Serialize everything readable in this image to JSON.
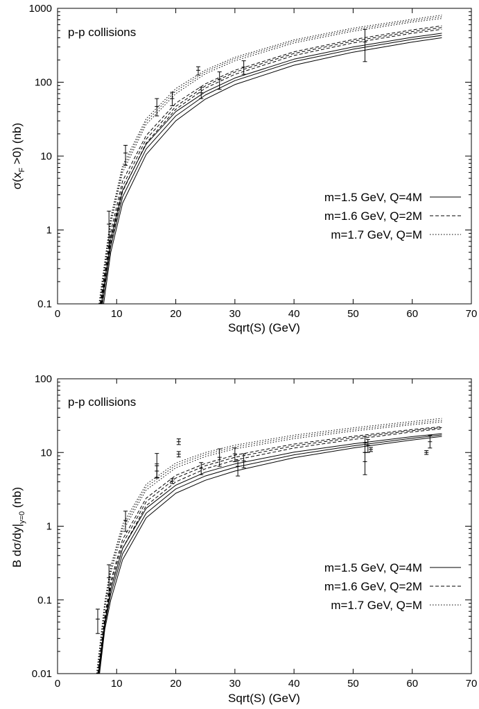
{
  "chart_data": [
    {
      "type": "line",
      "annotation": "p-p collisions",
      "xlabel": "Sqrt(S) (GeV)",
      "ylabel_main": "σ(x",
      "ylabel_sub": "F",
      "ylabel_tail": " >0) (nb)",
      "xlim": [
        0,
        70
      ],
      "ylim": [
        0.1,
        1000
      ],
      "yscale": "log",
      "x_ticks": [
        "0",
        "10",
        "20",
        "30",
        "40",
        "50",
        "60",
        "70"
      ],
      "y_ticks": [
        "0.1",
        "1",
        "10",
        "100",
        "1000"
      ],
      "legend_position": "right-middle",
      "legend": [
        {
          "label": "m=1.5 GeV, Q=4M",
          "style": "solid"
        },
        {
          "label": "m=1.6 GeV, Q=2M",
          "style": "dashed"
        },
        {
          "label": "m=1.7 GeV, Q=M",
          "style": "dotted"
        }
      ],
      "series": [
        {
          "style": "solid",
          "x": [
            7.8,
            9,
            11,
            15,
            20,
            25,
            30,
            40,
            50,
            60,
            65
          ],
          "y": [
            0.1,
            0.5,
            2.3,
            10.5,
            30,
            59,
            93,
            170,
            255,
            350,
            400
          ]
        },
        {
          "style": "solid",
          "x": [
            7.6,
            9,
            11,
            15,
            20,
            25,
            30,
            40,
            50,
            60,
            65
          ],
          "y": [
            0.1,
            0.6,
            2.8,
            12.5,
            35,
            67,
            105,
            190,
            280,
            380,
            430
          ]
        },
        {
          "style": "solid",
          "x": [
            7.4,
            9,
            11,
            15,
            20,
            25,
            30,
            40,
            50,
            60,
            65
          ],
          "y": [
            0.1,
            0.75,
            3.4,
            14.5,
            40,
            74,
            114,
            205,
            300,
            405,
            460
          ]
        },
        {
          "style": "dashed",
          "x": [
            7.5,
            9,
            11,
            15,
            20,
            25,
            30,
            40,
            50,
            60,
            65
          ],
          "y": [
            0.1,
            0.65,
            3.3,
            15,
            43,
            83,
            128,
            230,
            340,
            460,
            520
          ]
        },
        {
          "style": "dashed",
          "x": [
            7.3,
            9,
            11,
            15,
            20,
            25,
            30,
            40,
            50,
            60,
            65
          ],
          "y": [
            0.1,
            0.8,
            3.9,
            17,
            47,
            89,
            137,
            245,
            360,
            485,
            550
          ]
        },
        {
          "style": "dashed",
          "x": [
            7.2,
            9,
            11,
            15,
            20,
            25,
            30,
            40,
            50,
            60,
            65
          ],
          "y": [
            0.1,
            0.95,
            4.6,
            19,
            52,
            95,
            145,
            258,
            378,
            510,
            580
          ]
        },
        {
          "style": "dotted",
          "x": [
            7.2,
            9,
            11,
            15,
            20,
            25,
            30,
            40,
            50,
            60,
            65
          ],
          "y": [
            0.1,
            1.2,
            6,
            27,
            70,
            130,
            195,
            340,
            490,
            650,
            730
          ]
        },
        {
          "style": "dotted",
          "x": [
            7.1,
            9,
            11,
            15,
            20,
            25,
            30,
            40,
            50,
            60,
            65
          ],
          "y": [
            0.1,
            1.35,
            6.7,
            29.5,
            76,
            138,
            207,
            358,
            515,
            680,
            770
          ]
        },
        {
          "style": "dotted",
          "x": [
            7.0,
            9,
            11,
            15,
            20,
            25,
            30,
            40,
            50,
            60,
            65
          ],
          "y": [
            0.1,
            1.5,
            7.4,
            32,
            82,
            146,
            218,
            375,
            540,
            710,
            810
          ]
        }
      ],
      "data_points": [
        {
          "x": 8.7,
          "y": 1.2,
          "ylo": 0.6,
          "yhi": 1.8
        },
        {
          "x": 11.5,
          "y": 11,
          "ylo": 7.5,
          "yhi": 14
        },
        {
          "x": 16.8,
          "y": 47,
          "ylo": 35,
          "yhi": 60
        },
        {
          "x": 19.4,
          "y": 60,
          "ylo": 48,
          "yhi": 73
        },
        {
          "x": 23.8,
          "y": 145,
          "ylo": 125,
          "yhi": 162
        },
        {
          "x": 24.3,
          "y": 72,
          "ylo": 60,
          "yhi": 85
        },
        {
          "x": 27.4,
          "y": 110,
          "ylo": 80,
          "yhi": 138
        },
        {
          "x": 31.5,
          "y": 160,
          "ylo": 128,
          "yhi": 195
        },
        {
          "x": 52,
          "y": 350,
          "ylo": 190,
          "yhi": 520
        }
      ]
    },
    {
      "type": "line",
      "annotation": "p-p collisions",
      "xlabel": "Sqrt(S) (GeV)",
      "ylabel_main": "B dσ/dy|",
      "ylabel_sub": "y=0",
      "ylabel_tail": " (nb)",
      "xlim": [
        0,
        70
      ],
      "ylim": [
        0.01,
        100
      ],
      "yscale": "log",
      "x_ticks": [
        "0",
        "10",
        "20",
        "30",
        "40",
        "50",
        "60",
        "70"
      ],
      "y_ticks": [
        "0.01",
        "0.1",
        "1",
        "10",
        "100"
      ],
      "legend_position": "right-lower",
      "legend": [
        {
          "label": "m=1.5 GeV, Q=4M",
          "style": "solid"
        },
        {
          "label": "m=1.6 GeV, Q=2M",
          "style": "dashed"
        },
        {
          "label": "m=1.7 GeV, Q=M",
          "style": "dotted"
        }
      ],
      "series": [
        {
          "style": "solid",
          "x": [
            7.1,
            8,
            9,
            11,
            15,
            20,
            25,
            30,
            40,
            50,
            60,
            65
          ],
          "y": [
            0.01,
            0.04,
            0.1,
            0.35,
            1.3,
            2.8,
            4.2,
            5.6,
            8.5,
            11.5,
            14.8,
            16.5
          ]
        },
        {
          "style": "solid",
          "x": [
            7.0,
            8,
            9,
            11,
            15,
            20,
            25,
            30,
            40,
            50,
            60,
            65
          ],
          "y": [
            0.01,
            0.045,
            0.12,
            0.42,
            1.5,
            3.2,
            4.8,
            6.3,
            9.3,
            12.3,
            15.6,
            17.3
          ]
        },
        {
          "style": "solid",
          "x": [
            6.9,
            8,
            9,
            11,
            15,
            20,
            25,
            30,
            40,
            50,
            60,
            65
          ],
          "y": [
            0.01,
            0.05,
            0.14,
            0.5,
            1.75,
            3.6,
            5.4,
            7.0,
            10.1,
            13.1,
            16.4,
            18.0
          ]
        },
        {
          "style": "dashed",
          "x": [
            7.0,
            8,
            9,
            11,
            15,
            20,
            25,
            30,
            40,
            50,
            60,
            65
          ],
          "y": [
            0.01,
            0.05,
            0.14,
            0.5,
            1.9,
            4.0,
            6.0,
            7.9,
            11.5,
            15.0,
            19.0,
            21.0
          ]
        },
        {
          "style": "dashed",
          "x": [
            6.9,
            8,
            9,
            11,
            15,
            20,
            25,
            30,
            40,
            50,
            60,
            65
          ],
          "y": [
            0.01,
            0.055,
            0.16,
            0.58,
            2.15,
            4.5,
            6.6,
            8.6,
            12.3,
            15.9,
            19.8,
            21.8
          ]
        },
        {
          "style": "dashed",
          "x": [
            6.8,
            8,
            9,
            11,
            15,
            20,
            25,
            30,
            40,
            50,
            60,
            65
          ],
          "y": [
            0.01,
            0.06,
            0.18,
            0.66,
            2.4,
            4.9,
            7.1,
            9.2,
            13.0,
            16.6,
            20.5,
            22.4
          ]
        },
        {
          "style": "dotted",
          "x": [
            6.8,
            8,
            9,
            11,
            15,
            20,
            25,
            30,
            40,
            50,
            60,
            65
          ],
          "y": [
            0.01,
            0.075,
            0.23,
            0.85,
            3.1,
            6.2,
            8.8,
            11.2,
            15.4,
            19.5,
            23.8,
            26
          ]
        },
        {
          "style": "dotted",
          "x": [
            6.7,
            8,
            9,
            11,
            15,
            20,
            25,
            30,
            40,
            50,
            60,
            65
          ],
          "y": [
            0.01,
            0.085,
            0.26,
            0.95,
            3.4,
            6.7,
            9.4,
            11.9,
            16.3,
            20.5,
            25,
            27.3
          ]
        },
        {
          "style": "dotted",
          "x": [
            6.6,
            8,
            9,
            11,
            15,
            20,
            25,
            30,
            40,
            50,
            60,
            65
          ],
          "y": [
            0.01,
            0.095,
            0.29,
            1.05,
            3.7,
            7.2,
            10.0,
            12.6,
            17.2,
            21.6,
            26.3,
            29
          ]
        }
      ],
      "data_points": [
        {
          "x": 6.8,
          "y": 0.055,
          "ylo": 0.035,
          "yhi": 0.075
        },
        {
          "x": 8.7,
          "y": 0.2,
          "ylo": 0.12,
          "yhi": 0.3
        },
        {
          "x": 11.5,
          "y": 1.2,
          "ylo": 0.85,
          "yhi": 1.6
        },
        {
          "x": 16.8,
          "y": 7,
          "ylo": 4.5,
          "yhi": 9.7
        },
        {
          "x": 16.8,
          "y": 5.6,
          "ylo": 4.6,
          "yhi": 6.6
        },
        {
          "x": 19.4,
          "y": 4.1,
          "ylo": 3.8,
          "yhi": 4.4
        },
        {
          "x": 20.5,
          "y": 14,
          "ylo": 12.8,
          "yhi": 15.3
        },
        {
          "x": 20.5,
          "y": 9.5,
          "ylo": 8.7,
          "yhi": 10.3
        },
        {
          "x": 24.3,
          "y": 6.1,
          "ylo": 5.0,
          "yhi": 7.3
        },
        {
          "x": 27.4,
          "y": 8.6,
          "ylo": 6.5,
          "yhi": 11.2
        },
        {
          "x": 30,
          "y": 9.6,
          "ylo": 7.5,
          "yhi": 11.5
        },
        {
          "x": 30.5,
          "y": 6.5,
          "ylo": 4.8,
          "yhi": 7.8
        },
        {
          "x": 31.5,
          "y": 7.7,
          "ylo": 6.2,
          "yhi": 9.6
        },
        {
          "x": 52,
          "y": 13.5,
          "ylo": 10,
          "yhi": 16.5
        },
        {
          "x": 52,
          "y": 7.5,
          "ylo": 5,
          "yhi": 10
        },
        {
          "x": 52.5,
          "y": 12.5,
          "ylo": 10,
          "yhi": 15
        },
        {
          "x": 53,
          "y": 11,
          "ylo": 10.3,
          "yhi": 11.7
        },
        {
          "x": 62.4,
          "y": 10,
          "ylo": 9.4,
          "yhi": 10.6
        },
        {
          "x": 63,
          "y": 14,
          "ylo": 11.5,
          "yhi": 17
        }
      ]
    }
  ]
}
